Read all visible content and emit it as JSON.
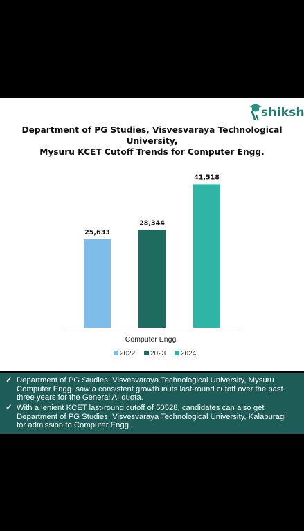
{
  "brand": {
    "name": "shiksha",
    "color": "#1f7a6e"
  },
  "chart_data": {
    "type": "bar",
    "title_line1": "Department of PG Studies, Visvesvaraya Technological University,",
    "title_line2": "Mysuru KCET Cutoff Trends for Computer Engg.",
    "categories": [
      "Computer Engg."
    ],
    "series": [
      {
        "name": "2022",
        "values": [
          25633
        ],
        "label": "25,633",
        "color": "#7dbde8"
      },
      {
        "name": "2023",
        "values": [
          28344
        ],
        "label": "28,344",
        "color": "#1e6b5f"
      },
      {
        "name": "2024",
        "values": [
          41518
        ],
        "label": "41,518",
        "color": "#2fb5a5"
      }
    ],
    "ylim": [
      0,
      46000
    ],
    "grid": false,
    "legend_position": "bottom"
  },
  "bullets": [
    {
      "icon": "check-icon",
      "lines": [
        "Department of PG Studies, Visvesvaraya Technological University, Mysuru",
        "Computer Engg. saw a consistent growth in its last-round cutoff over the past",
        "three years for the General AI quota."
      ]
    },
    {
      "icon": "check-icon",
      "lines": [
        "With a lenient KCET last-round cutoff of 50528, candidates can also get",
        "Department of PG Studies, Visvesvaraya Technological University, Kalaburagi",
        "for admission to Computer Engg.."
      ]
    }
  ]
}
